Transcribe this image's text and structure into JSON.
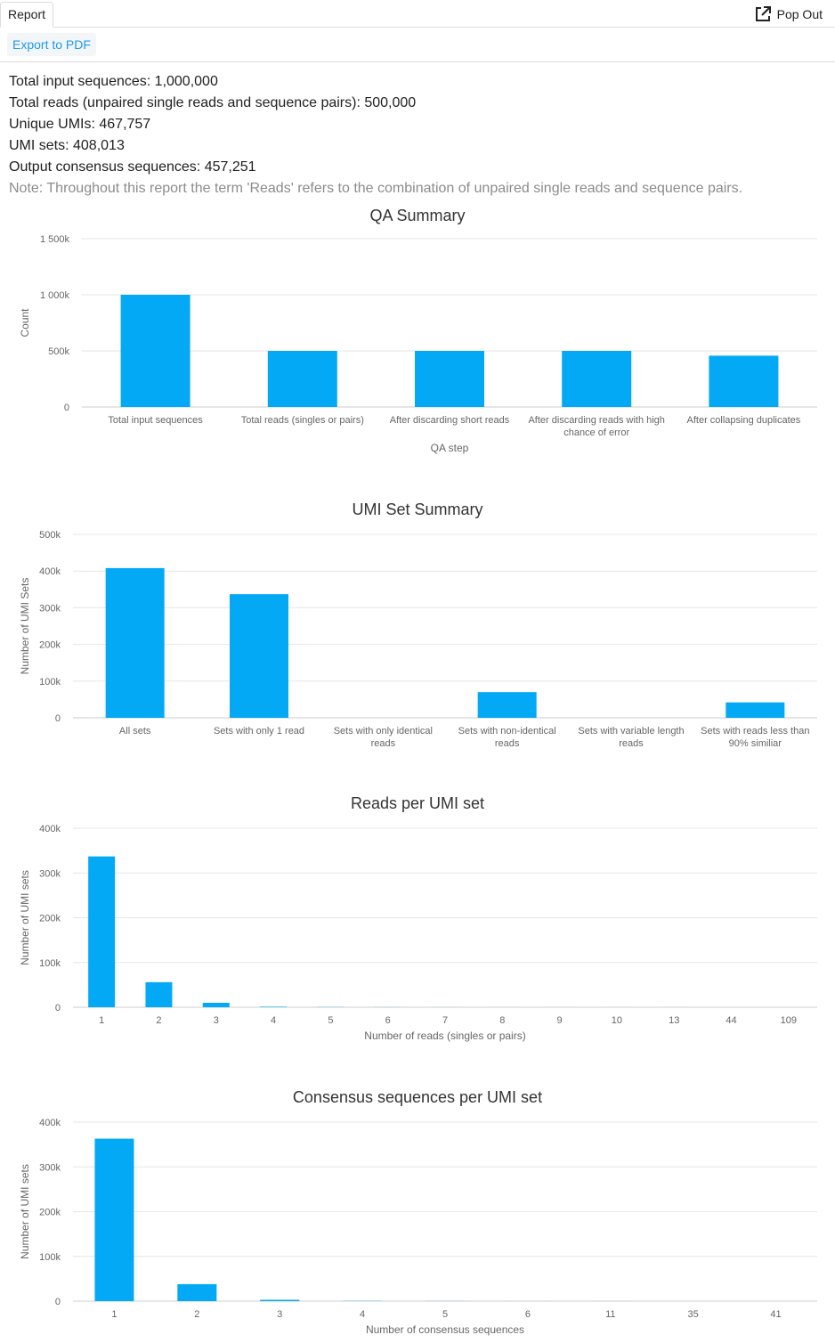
{
  "tab": {
    "label": "Report"
  },
  "popout": {
    "label": "Pop Out",
    "icon": "external-link-icon"
  },
  "toolbar": {
    "export_label": "Export to PDF"
  },
  "summary": {
    "lines": [
      "Total input sequences: 1,000,000",
      "Total reads (unpaired single reads and sequence pairs): 500,000",
      "Unique UMIs: 467,757",
      "UMI sets: 408,013",
      "Output consensus sequences: 457,251"
    ],
    "note": "Note: Throughout this report the term 'Reads' refers to the combination of unpaired single reads and sequence pairs."
  },
  "colors": {
    "bar": "#03a9f4",
    "accent": "#1e9be8"
  },
  "chart_data": [
    {
      "type": "bar",
      "title": "QA Summary",
      "xlabel": "QA step",
      "ylabel": "Count",
      "ylim": [
        0,
        1500000
      ],
      "yticks": [
        0,
        500000,
        1000000,
        1500000
      ],
      "ytick_labels": [
        "0",
        "500k",
        "1 000k",
        "1 500k"
      ],
      "categories": [
        [
          "Total input sequences"
        ],
        [
          "Total reads (singles or pairs)"
        ],
        [
          "After discarding short reads"
        ],
        [
          "After discarding reads with high",
          "chance of error"
        ],
        [
          "After collapsing duplicates"
        ]
      ],
      "values": [
        1000000,
        500000,
        500000,
        500000,
        457251
      ]
    },
    {
      "type": "bar",
      "title": "UMI Set Summary",
      "xlabel": "",
      "ylabel": "Number of UMI Sets",
      "ylim": [
        0,
        500000
      ],
      "yticks": [
        0,
        100000,
        200000,
        300000,
        400000,
        500000
      ],
      "ytick_labels": [
        "0",
        "100k",
        "200k",
        "300k",
        "400k",
        "500k"
      ],
      "categories": [
        [
          "All sets"
        ],
        [
          "Sets with only 1 read"
        ],
        [
          "Sets with only identical",
          "reads"
        ],
        [
          "Sets with non-identical",
          "reads"
        ],
        [
          "Sets with variable length",
          "reads"
        ],
        [
          "Sets with reads less than",
          "90% similiar"
        ]
      ],
      "values": [
        408013,
        337000,
        0,
        70000,
        0,
        42000
      ]
    },
    {
      "type": "bar",
      "title": "Reads per UMI set",
      "xlabel": "Number of reads (singles or pairs)",
      "ylabel": "Number of UMI sets",
      "ylim": [
        0,
        400000
      ],
      "yticks": [
        0,
        100000,
        200000,
        300000,
        400000
      ],
      "ytick_labels": [
        "0",
        "100k",
        "200k",
        "300k",
        "400k"
      ],
      "categories": [
        [
          "1"
        ],
        [
          "2"
        ],
        [
          "3"
        ],
        [
          "4"
        ],
        [
          "5"
        ],
        [
          "6"
        ],
        [
          "7"
        ],
        [
          "8"
        ],
        [
          "9"
        ],
        [
          "10"
        ],
        [
          "13"
        ],
        [
          "44"
        ],
        [
          "109"
        ]
      ],
      "values": [
        337000,
        56000,
        10000,
        1200,
        400,
        200,
        100,
        60,
        40,
        30,
        10,
        5,
        2
      ]
    },
    {
      "type": "bar",
      "title": "Consensus sequences per UMI set",
      "xlabel": "Number of consensus sequences",
      "ylabel": "Number of UMI sets",
      "ylim": [
        0,
        400000
      ],
      "yticks": [
        0,
        100000,
        200000,
        300000,
        400000
      ],
      "ytick_labels": [
        "0",
        "100k",
        "200k",
        "300k",
        "400k"
      ],
      "categories": [
        [
          "1"
        ],
        [
          "2"
        ],
        [
          "3"
        ],
        [
          "4"
        ],
        [
          "5"
        ],
        [
          "6"
        ],
        [
          "11"
        ],
        [
          "35"
        ],
        [
          "41"
        ]
      ],
      "values": [
        363000,
        38000,
        3000,
        500,
        200,
        100,
        20,
        5,
        2
      ]
    }
  ]
}
